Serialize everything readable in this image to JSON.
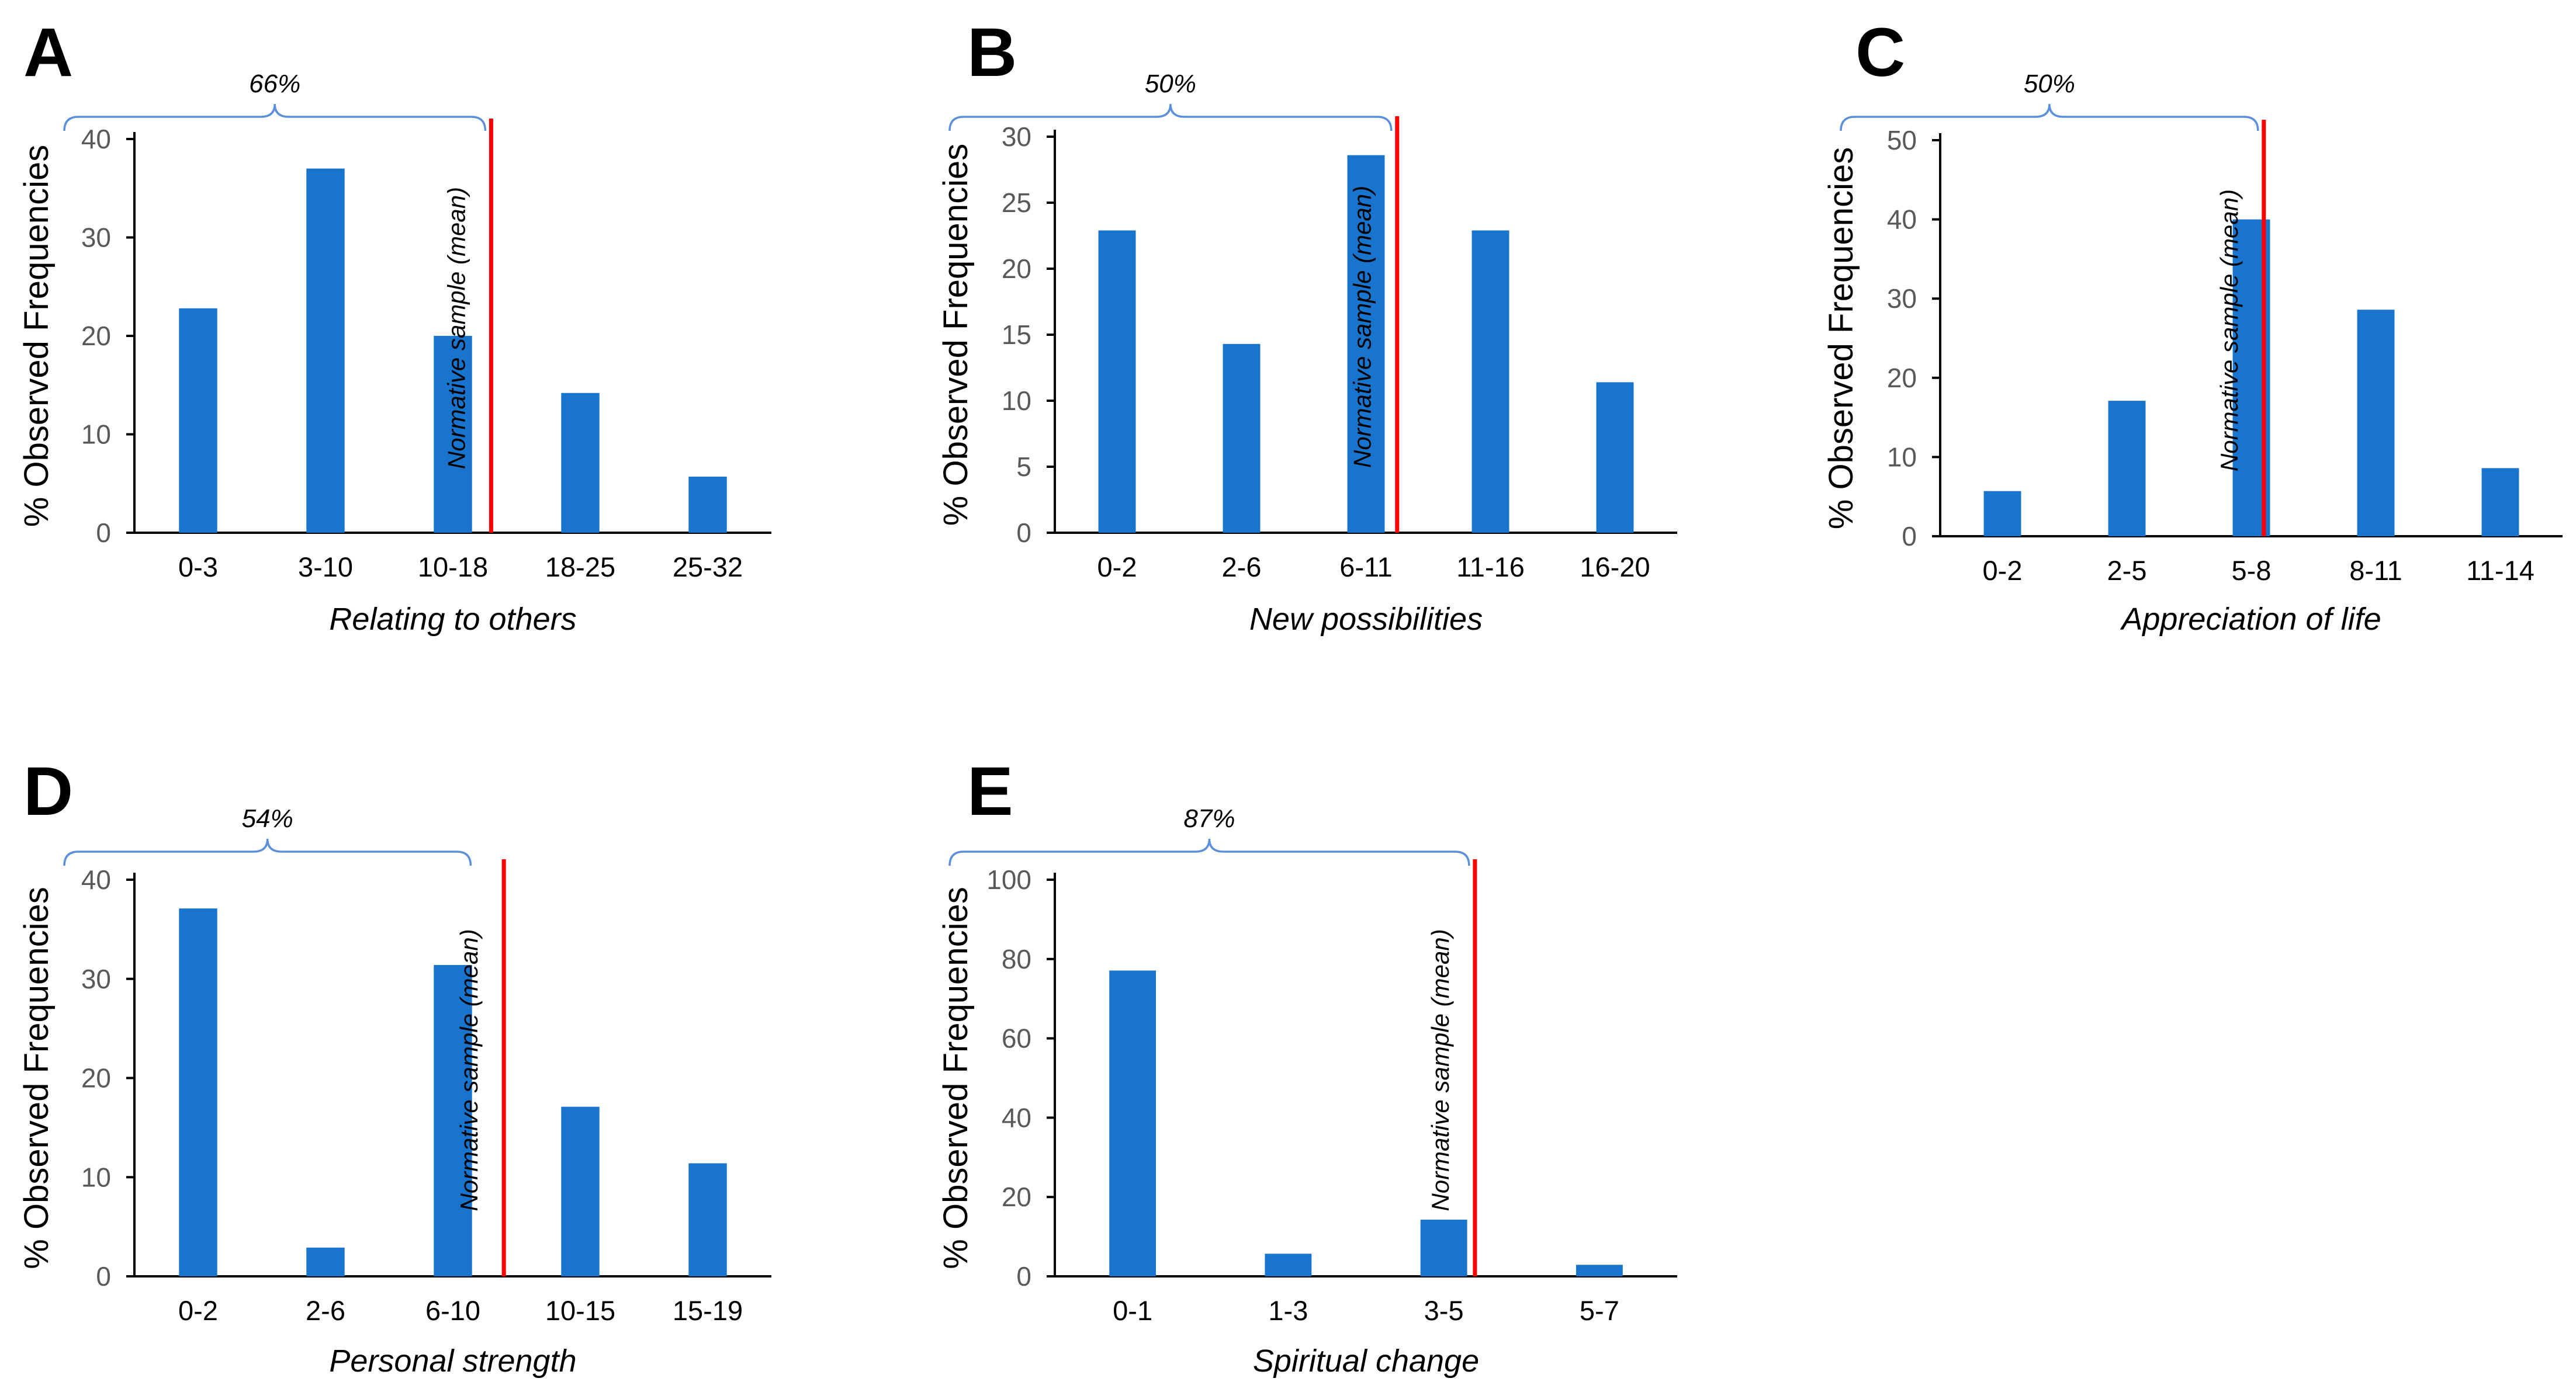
{
  "figure": {
    "bar_color": "#1874CD",
    "mean_line_color": "#FF0000",
    "bracket_color": "#5B8FD9",
    "axis_color": "#000000"
  },
  "chart_data": [
    {
      "panel": "A",
      "type": "bar",
      "categories": [
        "0-3",
        "3-10",
        "10-18",
        "18-25",
        "25-32"
      ],
      "values": [
        22.8,
        37,
        20,
        14.2,
        5.7
      ],
      "xlabel": "Relating to others",
      "ylabel": "% Observed Frequencies",
      "ylim": [
        0,
        40
      ],
      "yticks": [
        0,
        10,
        20,
        30,
        40
      ],
      "bracket_label": "66%",
      "bracket_range": [
        0,
        2.3
      ],
      "mean_line_x": 2.3,
      "mean_line_label": "Normative sample (mean)"
    },
    {
      "panel": "B",
      "type": "bar",
      "categories": [
        "0-2",
        "2-6",
        "6-11",
        "11-16",
        "16-20"
      ],
      "values": [
        22.9,
        14.3,
        28.6,
        22.9,
        11.4
      ],
      "xlabel": "New possibilities",
      "ylabel": "% Observed Frequencies",
      "ylim": [
        0,
        30
      ],
      "yticks": [
        0,
        5,
        10,
        15,
        20,
        25,
        30
      ],
      "bracket_label": "50%",
      "bracket_range": [
        0,
        2.25
      ],
      "mean_line_x": 2.25,
      "mean_line_label": "Normative sample (mean)"
    },
    {
      "panel": "C",
      "type": "bar",
      "categories": [
        "0-2",
        "2-5",
        "5-8",
        "8-11",
        "11-14"
      ],
      "values": [
        5.7,
        17.1,
        40,
        28.6,
        8.6
      ],
      "xlabel": "Appreciation of life",
      "ylabel": "% Observed Frequencies",
      "ylim": [
        0,
        50
      ],
      "yticks": [
        0,
        10,
        20,
        30,
        40,
        50
      ],
      "bracket_label": "50%",
      "bracket_range": [
        0,
        2.1
      ],
      "mean_line_x": 2.1,
      "mean_line_label": "Normative sample (mean)"
    },
    {
      "panel": "D",
      "type": "bar",
      "categories": [
        "0-2",
        "2-6",
        "6-10",
        "10-15",
        "15-19"
      ],
      "values": [
        37.1,
        2.9,
        31.4,
        17.1,
        11.4
      ],
      "xlabel": "Personal strength",
      "ylabel": "% Observed Frequencies",
      "ylim": [
        0,
        40
      ],
      "yticks": [
        0,
        10,
        20,
        30,
        40
      ],
      "bracket_label": "54%",
      "bracket_range": [
        0,
        2.3
      ],
      "mean_line_x": 2.4,
      "mean_line_label": "Normative sample (mean)"
    },
    {
      "panel": "E",
      "type": "bar",
      "categories": [
        "0-1",
        "1-3",
        "3-5",
        "5-7"
      ],
      "values": [
        77.1,
        5.7,
        14.3,
        2.9
      ],
      "xlabel": "Spiritual change",
      "ylabel": "% Observed Frequencies",
      "ylim": [
        0,
        100
      ],
      "yticks": [
        0,
        20,
        40,
        60,
        80,
        100
      ],
      "bracket_label": "87%",
      "bracket_range": [
        0,
        2.2
      ],
      "mean_line_x": 2.2,
      "mean_line_label": "Normative sample (mean)"
    }
  ]
}
